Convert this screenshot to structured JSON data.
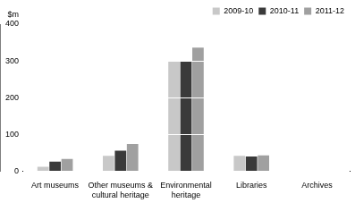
{
  "chart_data": {
    "type": "bar",
    "ylabel": "$m",
    "categories": [
      "Art museums",
      "Other museums & cultural heritage",
      "Environmental heritage",
      "Libraries",
      "Archives"
    ],
    "series": [
      {
        "name": "2009-10",
        "color": "#c8c8c8",
        "values": [
          12,
          42,
          298,
          42,
          1
        ]
      },
      {
        "name": "2010-11",
        "color": "#3a3a3a",
        "values": [
          26,
          56,
          300,
          40,
          1
        ]
      },
      {
        "name": "2011-12",
        "color": "#a0a0a0",
        "values": [
          33,
          74,
          336,
          43,
          1
        ]
      }
    ],
    "ylim": [
      0,
      400
    ],
    "yticks": [
      0,
      100,
      200,
      300,
      400
    ],
    "grid": true,
    "legend": "top-right"
  }
}
